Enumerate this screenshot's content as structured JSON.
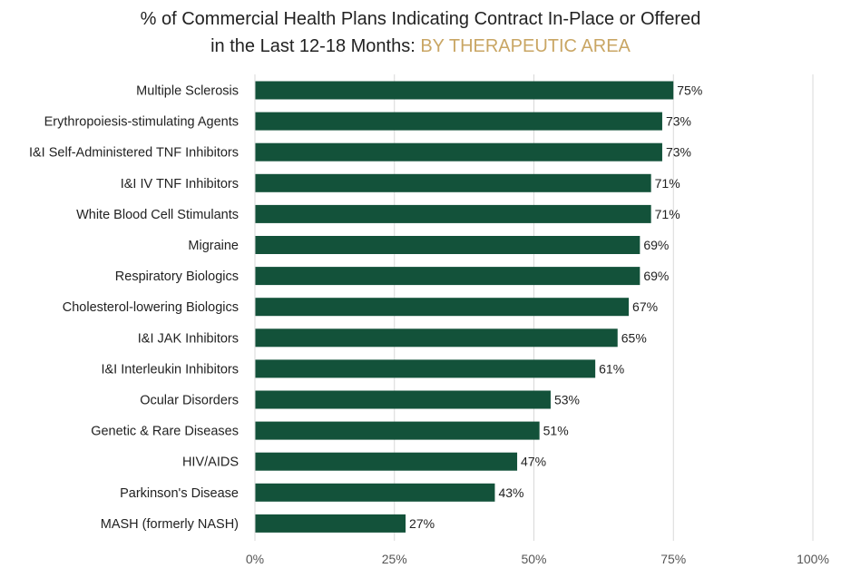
{
  "chart_data": {
    "type": "bar",
    "orientation": "horizontal",
    "title": {
      "line1": "% of Commercial Health Plans Indicating Contract In-Place or Offered",
      "line2_prefix": "in the Last 12-18 Months: ",
      "line2_accent": "BY THERAPEUTIC AREA"
    },
    "categories": [
      "Multiple Sclerosis",
      "Erythropoiesis-stimulating Agents",
      "I&I Self-Administered TNF Inhibitors",
      "I&I IV TNF Inhibitors",
      "White Blood Cell Stimulants",
      "Migraine",
      "Respiratory Biologics",
      "Cholesterol-lowering Biologics",
      "I&I JAK Inhibitors",
      "I&I Interleukin Inhibitors",
      "Ocular Disorders",
      "Genetic & Rare Diseases",
      "HIV/AIDS",
      "Parkinson's Disease",
      "MASH (formerly NASH)"
    ],
    "values": [
      75,
      73,
      73,
      71,
      71,
      69,
      69,
      67,
      65,
      61,
      53,
      51,
      47,
      43,
      27
    ],
    "value_labels": [
      "75%",
      "73%",
      "73%",
      "71%",
      "71%",
      "69%",
      "69%",
      "67%",
      "65%",
      "61%",
      "53%",
      "51%",
      "47%",
      "43%",
      "27%"
    ],
    "xlim": [
      0,
      100
    ],
    "x_ticks": [
      0,
      25,
      50,
      75,
      100
    ],
    "x_tick_labels": [
      "0%",
      "25%",
      "50%",
      "75%",
      "100%"
    ],
    "xlabel": "",
    "ylabel": "",
    "grid": "vertical",
    "legend": "none",
    "colors": {
      "bar": "#13523a",
      "accent": "#c9a664",
      "grid": "#d9d9d9"
    }
  }
}
